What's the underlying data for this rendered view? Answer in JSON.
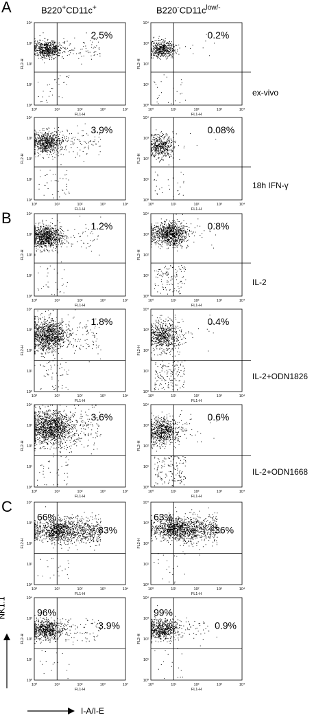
{
  "panels": [
    {
      "letter": "A"
    },
    {
      "letter": "B"
    },
    {
      "letter": "C"
    }
  ],
  "column_headers": {
    "left": {
      "base": "B220",
      "sup1": "+",
      "mid": "CD11c",
      "sup2": "+"
    },
    "right": {
      "base": "B220",
      "sup1": "-",
      "mid": "CD11c",
      "sup2": "low/-"
    }
  },
  "conditions": [
    "ex-vivo",
    "18h IFN-γ",
    "IL-2",
    "IL-2+ODN1826",
    "IL-2+ODN1668"
  ],
  "axis_labels": {
    "y": "NK1.1",
    "x": "I-A/I-E"
  },
  "chart_data": {
    "type": "scatter",
    "plot_axes": {
      "x_label": "FL1-H",
      "y_label": "FL2-H",
      "x_scale": "log",
      "y_scale": "log",
      "xlim": [
        1,
        10000
      ],
      "ylim": [
        1,
        10000
      ],
      "tick_labels": [
        "10⁰",
        "10¹",
        "10²",
        "10³",
        "10⁴"
      ]
    },
    "plots": [
      {
        "panel": "A",
        "column": "B220+CD11c+",
        "condition": "ex-vivo",
        "values": [
          "2.5%"
        ]
      },
      {
        "panel": "A",
        "column": "B220-CD11c low/-",
        "condition": "ex-vivo",
        "values": [
          "0.2%"
        ]
      },
      {
        "panel": "A",
        "column": "B220+CD11c+",
        "condition": "18h IFN-γ",
        "values": [
          "3.9%"
        ]
      },
      {
        "panel": "A",
        "column": "B220-CD11c low/-",
        "condition": "18h IFN-γ",
        "values": [
          "0.08%"
        ]
      },
      {
        "panel": "B",
        "column": "B220+CD11c+",
        "condition": "IL-2",
        "values": [
          "1.2%"
        ]
      },
      {
        "panel": "B",
        "column": "B220-CD11c low/-",
        "condition": "IL-2",
        "values": [
          "0.8%"
        ]
      },
      {
        "panel": "B",
        "column": "B220+CD11c+",
        "condition": "IL-2+ODN1826",
        "values": [
          "1.8%"
        ]
      },
      {
        "panel": "B",
        "column": "B220-CD11c low/-",
        "condition": "IL-2+ODN1826",
        "values": [
          "0.4%"
        ]
      },
      {
        "panel": "B",
        "column": "B220+CD11c+",
        "condition": "IL-2+ODN1668",
        "values": [
          "3.6%"
        ]
      },
      {
        "panel": "B",
        "column": "B220-CD11c low/-",
        "condition": "IL-2+ODN1668",
        "values": [
          "0.6%"
        ]
      },
      {
        "panel": "C",
        "column": "B220+CD11c+",
        "condition": "",
        "values": [
          "66%",
          "33%"
        ]
      },
      {
        "panel": "C",
        "column": "B220-CD11c low/-",
        "condition": "",
        "values": [
          "63%",
          "36%"
        ]
      },
      {
        "panel": "C",
        "column": "B220+CD11c+",
        "condition": "",
        "values": [
          "96%",
          "3.9%"
        ]
      },
      {
        "panel": "C",
        "column": "B220-CD11c low/-",
        "condition": "",
        "values": [
          "99%",
          "0.9%"
        ]
      }
    ]
  }
}
